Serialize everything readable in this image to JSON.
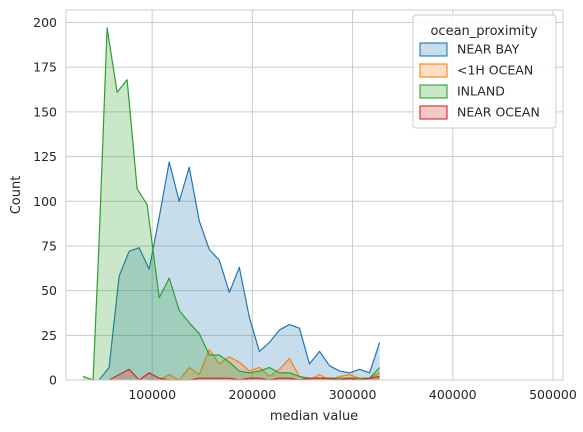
{
  "chart_data": {
    "type": "area",
    "xlabel": "median value",
    "ylabel": "Count",
    "xlim": [
      14000,
      510000
    ],
    "ylim": [
      0,
      207
    ],
    "xticks": [
      100000,
      200000,
      300000,
      400000,
      500000
    ],
    "xtick_labels": [
      "100000",
      "200000",
      "300000",
      "400000",
      "500000"
    ],
    "yticks": [
      0,
      25,
      50,
      75,
      100,
      125,
      150,
      175,
      200
    ],
    "ytick_labels": [
      "0",
      "25",
      "50",
      "75",
      "100",
      "125",
      "150",
      "175",
      "200"
    ],
    "grid": true,
    "legend": {
      "title": "ocean_proximity",
      "placement": "top-right"
    },
    "series": [
      {
        "name": "NEAR BAY",
        "color": "#1f77b4",
        "points": [
          [
            47000,
            0
          ],
          [
            57000,
            7
          ],
          [
            67000,
            58
          ],
          [
            77000,
            72
          ],
          [
            87000,
            74
          ],
          [
            97000,
            62
          ],
          [
            107000,
            91
          ],
          [
            117000,
            122
          ],
          [
            127000,
            100
          ],
          [
            137000,
            119
          ],
          [
            147000,
            89
          ],
          [
            157000,
            73
          ],
          [
            167000,
            67
          ],
          [
            177000,
            49
          ],
          [
            187000,
            63
          ],
          [
            197000,
            35
          ],
          [
            207000,
            16
          ],
          [
            217000,
            21
          ],
          [
            227000,
            28
          ],
          [
            237000,
            31
          ],
          [
            247000,
            29
          ],
          [
            257000,
            9
          ],
          [
            267000,
            16
          ],
          [
            277000,
            8
          ],
          [
            287000,
            5
          ],
          [
            297000,
            4
          ],
          [
            307000,
            6
          ],
          [
            317000,
            4
          ],
          [
            327000,
            21
          ]
        ]
      },
      {
        "name": "<1H OCEAN",
        "color": "#ff7f0e",
        "points": [
          [
            97000,
            0
          ],
          [
            107000,
            0
          ],
          [
            117000,
            3
          ],
          [
            127000,
            0
          ],
          [
            137000,
            7
          ],
          [
            147000,
            3
          ],
          [
            157000,
            17
          ],
          [
            167000,
            9
          ],
          [
            177000,
            13
          ],
          [
            187000,
            10
          ],
          [
            197000,
            5
          ],
          [
            207000,
            7
          ],
          [
            217000,
            2
          ],
          [
            227000,
            6
          ],
          [
            237000,
            12
          ],
          [
            247000,
            2
          ],
          [
            257000,
            0
          ],
          [
            267000,
            3
          ],
          [
            277000,
            0
          ],
          [
            287000,
            2
          ],
          [
            297000,
            3
          ],
          [
            307000,
            1
          ],
          [
            317000,
            1
          ],
          [
            327000,
            4
          ]
        ]
      },
      {
        "name": "INLAND",
        "color": "#2ca02c",
        "points": [
          [
            31000,
            2
          ],
          [
            41000,
            0
          ],
          [
            47000,
            77
          ],
          [
            55000,
            197
          ],
          [
            65000,
            161
          ],
          [
            75000,
            168
          ],
          [
            85000,
            107
          ],
          [
            95000,
            98
          ],
          [
            107000,
            46
          ],
          [
            117000,
            57
          ],
          [
            127000,
            39
          ],
          [
            137000,
            32
          ],
          [
            147000,
            26
          ],
          [
            157000,
            14
          ],
          [
            167000,
            14
          ],
          [
            177000,
            10
          ],
          [
            187000,
            5
          ],
          [
            197000,
            4
          ],
          [
            207000,
            5
          ],
          [
            217000,
            7
          ],
          [
            227000,
            4
          ],
          [
            237000,
            4
          ],
          [
            247000,
            2
          ],
          [
            257000,
            1
          ],
          [
            267000,
            1
          ],
          [
            277000,
            1
          ],
          [
            287000,
            1
          ],
          [
            297000,
            1
          ],
          [
            307000,
            1
          ],
          [
            317000,
            1
          ],
          [
            327000,
            7
          ]
        ]
      },
      {
        "name": "NEAR OCEAN",
        "color": "#d62728",
        "points": [
          [
            57000,
            0
          ],
          [
            67000,
            3
          ],
          [
            77000,
            6
          ],
          [
            87000,
            0
          ],
          [
            97000,
            4
          ],
          [
            107000,
            1
          ],
          [
            117000,
            0
          ],
          [
            127000,
            0
          ],
          [
            137000,
            0
          ],
          [
            147000,
            1
          ],
          [
            157000,
            1
          ],
          [
            167000,
            1
          ],
          [
            177000,
            1
          ],
          [
            187000,
            0
          ],
          [
            197000,
            1
          ],
          [
            207000,
            1
          ],
          [
            217000,
            0
          ],
          [
            227000,
            1
          ],
          [
            237000,
            1
          ],
          [
            247000,
            0
          ],
          [
            257000,
            1
          ],
          [
            267000,
            1
          ],
          [
            277000,
            1
          ],
          [
            287000,
            0
          ],
          [
            297000,
            1
          ],
          [
            307000,
            0
          ],
          [
            317000,
            1
          ],
          [
            327000,
            2
          ]
        ]
      }
    ]
  }
}
